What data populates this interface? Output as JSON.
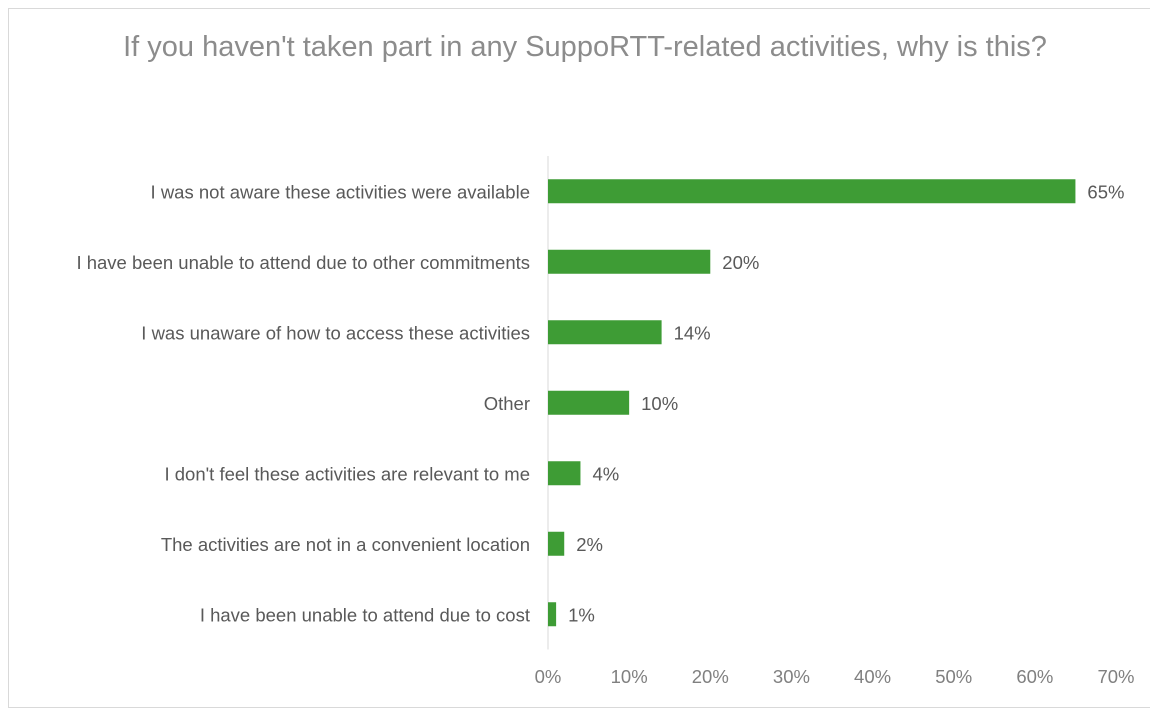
{
  "chart_data": {
    "type": "bar",
    "orientation": "horizontal",
    "title": "If you haven't taken part in any SuppoRTT-related activities, why is this?",
    "categories": [
      "I was not aware these activities were available",
      "I have been unable to attend due to other commitments",
      "I was unaware of how to access these activities",
      "Other",
      "I don't feel these activities are relevant to me",
      "The activities are not in a convenient location",
      "I have been unable to attend due to cost"
    ],
    "values": [
      65,
      20,
      14,
      10,
      4,
      2,
      1
    ],
    "data_labels": [
      "65%",
      "20%",
      "14%",
      "10%",
      "4%",
      "2%",
      "1%"
    ],
    "xlim": [
      0,
      70
    ],
    "x_ticks": [
      "0%",
      "10%",
      "20%",
      "30%",
      "40%",
      "50%",
      "60%",
      "70%"
    ],
    "grid": false,
    "legend": "none",
    "colors": {
      "bar": "#3e9c35",
      "title": "#8c8c8c",
      "label": "#595959",
      "tick": "#808080",
      "axis": "#d9d9d9"
    }
  }
}
